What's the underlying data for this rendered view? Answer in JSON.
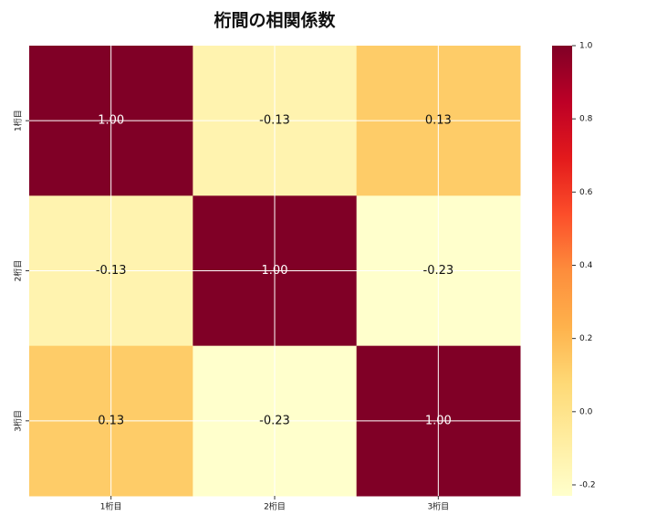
{
  "chart_data": {
    "type": "heatmap",
    "title": "桁間の相関係数",
    "x_categories": [
      "1桁目",
      "2桁目",
      "3桁目"
    ],
    "y_categories": [
      "1桁目",
      "2桁目",
      "3桁目"
    ],
    "values": [
      [
        1.0,
        -0.13,
        0.13
      ],
      [
        -0.13,
        1.0,
        -0.23
      ],
      [
        0.13,
        -0.23,
        1.0
      ]
    ],
    "value_labels": [
      [
        "1.00",
        "-0.13",
        "0.13"
      ],
      [
        "-0.13",
        "1.00",
        "-0.23"
      ],
      [
        "0.13",
        "-0.23",
        "1.00"
      ]
    ],
    "clim": [
      -0.23,
      1.0
    ],
    "cticks": [
      {
        "value": 1,
        "label": "1.0"
      },
      0.8,
      0.6,
      0.4,
      0.2,
      {
        "value": 0,
        "label": "0.0"
      },
      -0.2
    ],
    "colorscale": [
      "#ffffcc",
      "#ffeda0",
      "#fed976",
      "#feb24c",
      "#fd8d3c",
      "#fc4e2a",
      "#e31a1c",
      "#bd0026",
      "#800026"
    ],
    "grid": true
  }
}
